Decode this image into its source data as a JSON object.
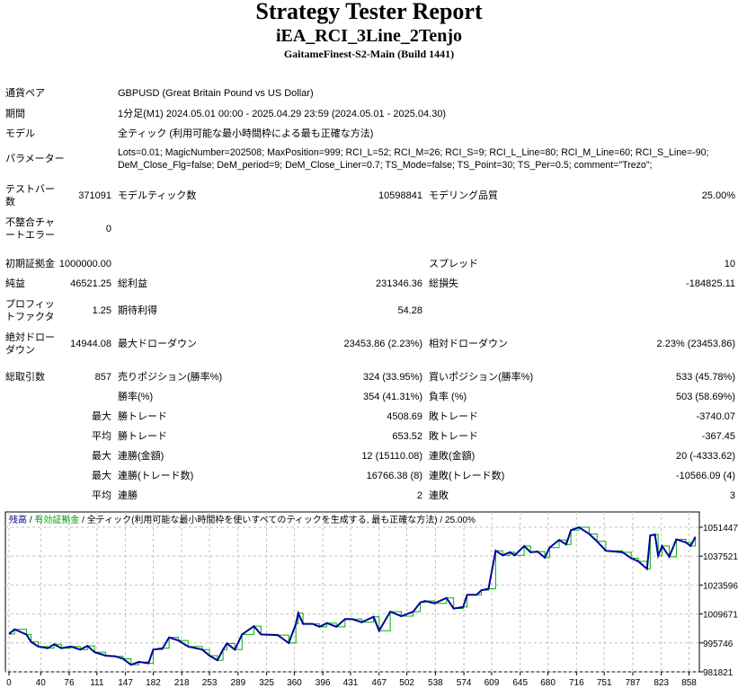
{
  "header": {
    "title": "Strategy Tester Report",
    "ea_name": "iEA_RCI_3Line_2Tenjo",
    "server": "GaitameFinest-S2-Main (Build 1441)"
  },
  "info": {
    "symbol_label": "通貨ペア",
    "symbol": "GBPUSD (Great Britain Pound vs US Dollar)",
    "period_label": "期間",
    "period": "1分足(M1) 2024.05.01 00:00 - 2025.04.29 23:59 (2024.05.01 - 2025.04.30)",
    "model_label": "モデル",
    "model": "全ティック (利用可能な最小時間枠による最も正確な方法)",
    "params_label": "パラメーター",
    "params_line1": "Lots=0.01; MagicNumber=202508; MaxPosition=999; RCI_L=52; RCI_M=26; RCI_S=9; RCI_L_Line=80; RCI_M_Line=60; RCI_S_Line=-90;",
    "params_line2": "DeM_Close_Flg=false; DeM_period=9; DeM_Close_Liner=0.7; TS_Mode=false; TS_Point=30; TS_Per=0.5; comment=\"Trezo\";"
  },
  "stats": {
    "bars_label": "テストバー数",
    "bars": "371091",
    "ticks_label": "モデルティック数",
    "ticks": "10598841",
    "quality_label": "モデリング品質",
    "quality": "25.00%",
    "mismatch_label": "不整合チャートエラー",
    "mismatch": "0",
    "deposit_label": "初期証拠金",
    "deposit": "1000000.00",
    "spread_label": "スプレッド",
    "spread": "10",
    "net_label": "純益",
    "net": "46521.25",
    "gross_profit_label": "総利益",
    "gross_profit": "231346.36",
    "gross_loss_label": "総損失",
    "gross_loss": "-184825.11",
    "pf_label": "プロフィットファクタ",
    "pf": "1.25",
    "expected_label": "期待利得",
    "expected": "54.28",
    "abs_dd_label": "絶対ドローダウン",
    "abs_dd": "14944.08",
    "max_dd_label": "最大ドローダウン",
    "max_dd": "23453.86 (2.23%)",
    "rel_dd_label": "相対ドローダウン",
    "rel_dd": "2.23% (23453.86)",
    "trades_label": "総取引数",
    "trades": "857",
    "short_label": "売りポジション(勝率%)",
    "short": "324 (33.95%)",
    "long_label": "買いポジション(勝率%)",
    "long": "533 (45.78%)",
    "win_label": "勝率(%)",
    "win": "354 (41.31%)",
    "loss_label": "負率 (%)",
    "loss": "503 (58.69%)",
    "largest_label": "最大",
    "largest_win_label": "勝トレード",
    "largest_win": "4508.69",
    "largest_loss_label": "敗トレード",
    "largest_loss": "-3740.07",
    "average_label": "平均",
    "avg_win_label": "勝トレード",
    "avg_win": "653.52",
    "avg_loss_label": "敗トレード",
    "avg_loss": "-367.45",
    "maxcons_label": "最大",
    "maxcons_win_label": "連勝(金額)",
    "maxcons_win": "12 (15110.08)",
    "maxcons_loss_label": "連敗(金額)",
    "maxcons_loss": "20 (-4333.62)",
    "maxcons2_label": "最大",
    "maxcons2_win_label": "連勝(トレード数)",
    "maxcons2_win": "16766.38 (8)",
    "maxcons2_loss_label": "連敗(トレード数)",
    "maxcons2_loss": "-10566.09 (4)",
    "avgcons_label": "平均",
    "avgcons_win_label": "連勝",
    "avgcons_win": "2",
    "avgcons_loss_label": "連敗",
    "avgcons_loss": "3"
  },
  "chart_data": {
    "type": "line",
    "legend": {
      "balance": "残高",
      "sep1": " / ",
      "equity": "有効証拠金",
      "sep2": " / ",
      "model": "全ティック(利用可能な最小時間枠を使いすべてのティックを生成する, 最も正確な方法)",
      "sep3": " / ",
      "quality": "25.00%"
    },
    "colors": {
      "balance": "#0000a0",
      "equity": "#00b000",
      "grid": "#c0c0c0"
    },
    "xlim": [
      -4.5,
      871
    ],
    "ylim": [
      981821,
      1058776
    ],
    "x_ticks": [
      0,
      40,
      76,
      111,
      147,
      182,
      218,
      253,
      289,
      325,
      360,
      396,
      431,
      467,
      502,
      538,
      574,
      609,
      645,
      680,
      716,
      751,
      787,
      823,
      858
    ],
    "y_ticks": [
      1051447,
      1037521,
      1023596,
      1009671,
      995746,
      981821
    ],
    "series": [
      {
        "name": "残高",
        "points": [
          [
            0,
            1000000
          ],
          [
            7,
            1002300
          ],
          [
            22,
            999800
          ],
          [
            28,
            996200
          ],
          [
            37,
            994000
          ],
          [
            49,
            993200
          ],
          [
            57,
            995100
          ],
          [
            66,
            993200
          ],
          [
            78,
            994000
          ],
          [
            90,
            992500
          ],
          [
            99,
            994300
          ],
          [
            108,
            991300
          ],
          [
            122,
            989600
          ],
          [
            134,
            989300
          ],
          [
            144,
            988100
          ],
          [
            154,
            985200
          ],
          [
            164,
            986600
          ],
          [
            176,
            985900
          ],
          [
            182,
            992500
          ],
          [
            194,
            993200
          ],
          [
            202,
            998400
          ],
          [
            214,
            996900
          ],
          [
            226,
            994000
          ],
          [
            244,
            992500
          ],
          [
            253,
            989600
          ],
          [
            263,
            987400
          ],
          [
            270,
            992500
          ],
          [
            275,
            995500
          ],
          [
            285,
            992500
          ],
          [
            294,
            999800
          ],
          [
            309,
            1003800
          ],
          [
            318,
            999800
          ],
          [
            339,
            999500
          ],
          [
            353,
            995700
          ],
          [
            362,
            1004900
          ],
          [
            365,
            1010100
          ],
          [
            371,
            1004900
          ],
          [
            383,
            1004900
          ],
          [
            392,
            1003500
          ],
          [
            401,
            1005300
          ],
          [
            413,
            1003500
          ],
          [
            424,
            1007200
          ],
          [
            433,
            1007200
          ],
          [
            445,
            1005700
          ],
          [
            460,
            1008300
          ],
          [
            467,
            1001600
          ],
          [
            481,
            1010800
          ],
          [
            495,
            1008600
          ],
          [
            510,
            1010800
          ],
          [
            519,
            1015200
          ],
          [
            525,
            1015900
          ],
          [
            537,
            1014800
          ],
          [
            552,
            1017400
          ],
          [
            561,
            1012300
          ],
          [
            573,
            1013000
          ],
          [
            578,
            1018900
          ],
          [
            590,
            1018900
          ],
          [
            596,
            1021100
          ],
          [
            605,
            1021800
          ],
          [
            614,
            1040100
          ],
          [
            623,
            1037900
          ],
          [
            632,
            1039400
          ],
          [
            638,
            1037900
          ],
          [
            650,
            1042400
          ],
          [
            658,
            1039400
          ],
          [
            667,
            1039700
          ],
          [
            676,
            1036800
          ],
          [
            682,
            1041600
          ],
          [
            694,
            1045300
          ],
          [
            703,
            1043100
          ],
          [
            709,
            1050000
          ],
          [
            719,
            1051400
          ],
          [
            732,
            1048200
          ],
          [
            742,
            1044600
          ],
          [
            753,
            1040100
          ],
          [
            774,
            1039400
          ],
          [
            785,
            1036500
          ],
          [
            794,
            1035000
          ],
          [
            805,
            1031400
          ],
          [
            809,
            1047500
          ],
          [
            815,
            1047900
          ],
          [
            819,
            1037700
          ],
          [
            824,
            1042400
          ],
          [
            833,
            1037200
          ],
          [
            842,
            1045600
          ],
          [
            854,
            1044100
          ],
          [
            860,
            1042400
          ],
          [
            866,
            1046800
          ]
        ]
      }
    ]
  }
}
